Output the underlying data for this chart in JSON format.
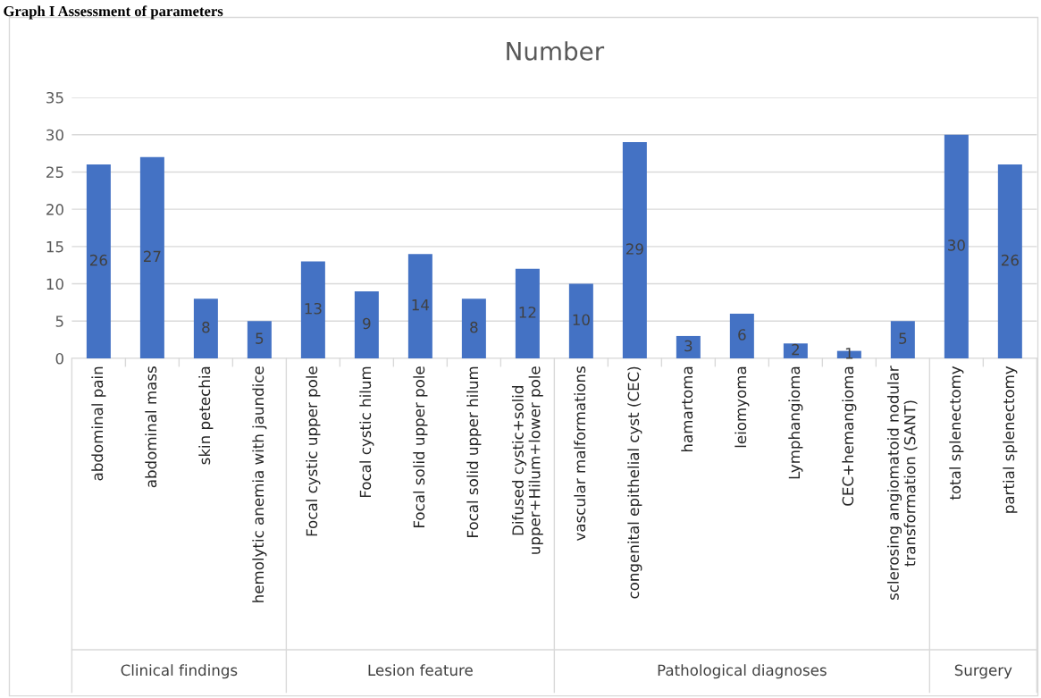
{
  "chart_data": {
    "type": "bar",
    "title": "Number",
    "categories": [
      "abdominal pain",
      "abdominal mass",
      "skin petechia",
      "hemolytic anemia with jaundice",
      "Focal cystic upper pole",
      "Focal cystic hilum",
      "Focal solid upper pole",
      "Focal solid upper hilum",
      "Difused cystic+solid\nupper+Hilum+lower pole",
      "vascular malformations",
      "congenital epithelial cyst (CEC)",
      "hamartoma",
      "leiomyoma",
      "Lymphangioma",
      "CEC+hemangioma",
      "sclerosing angiomatoid nodular\ntransformation (SANT)",
      "total splenectomy",
      "partial splenectomy"
    ],
    "values": [
      26,
      27,
      8,
      5,
      13,
      9,
      14,
      8,
      12,
      10,
      29,
      3,
      6,
      2,
      1,
      5,
      30,
      26
    ],
    "color": "#4472c4",
    "data_labels": true,
    "ylim": [
      0,
      35
    ],
    "yticks": [
      0,
      5,
      10,
      15,
      20,
      25,
      30,
      35
    ],
    "grid": "y",
    "annotations": [
      "Graph I Assessment of parameters",
      "Clinical findings",
      "Lesion feature",
      "Pathological diagnoses",
      "Surgery"
    ]
  }
}
